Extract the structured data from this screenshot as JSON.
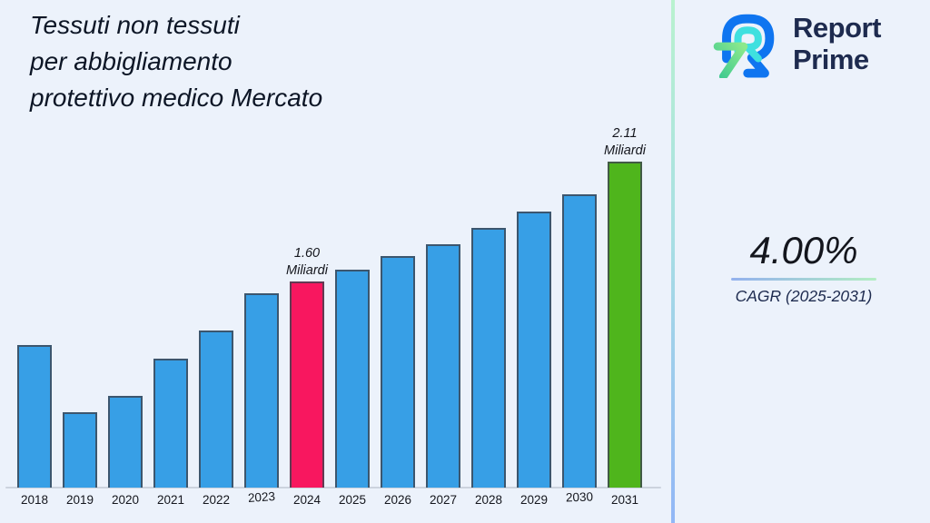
{
  "title": "Tessuti non tessuti\nper abbigliamento\nprotettivo medico Mercato",
  "logo": {
    "line1": "Report",
    "line2": "Prime"
  },
  "cagr": {
    "value": "4.00%",
    "label": "CAGR (2025-2031)"
  },
  "chart_data": {
    "type": "bar",
    "title": "Tessuti non tessuti per abbigliamento protettivo medico Mercato",
    "unit": "Miliardi",
    "categories": [
      "2018",
      "2019",
      "2020",
      "2021",
      "2022",
      "2023",
      "2024",
      "2025",
      "2026",
      "2027",
      "2028",
      "2029",
      "2030",
      "2031"
    ],
    "values": [
      1.33,
      1.04,
      1.11,
      1.27,
      1.39,
      1.55,
      1.6,
      1.65,
      1.71,
      1.76,
      1.83,
      1.9,
      1.97,
      2.11
    ],
    "annotations": [
      {
        "category": "2024",
        "lines": [
          "1.60",
          "Miliardi"
        ]
      },
      {
        "category": "2031",
        "lines": [
          "2.11",
          "Miliardi"
        ]
      }
    ],
    "ylim": [
      0.72,
      2.2
    ],
    "gridlines": false,
    "legend": false,
    "xlabel": "",
    "ylabel": ""
  },
  "colors": {
    "background": "#ECF2FB",
    "title_color": "#0d1626",
    "chart_text": "#14161d",
    "bar_default": "#379FE6",
    "bar_2024": "#F8175F",
    "bar_2031": "#4FB51C",
    "bar_border": "#3d4450cc",
    "axis_line": "#ccd3de",
    "divider_top": "#b9f2cf",
    "divider_mid": "#a8dfe3",
    "divider_bottom": "#92b7f6",
    "underline_left": "#93b1ee",
    "underline_right": "#b3eec3",
    "logo_navy": "#1e2b4f",
    "logo_blue": "#0f75f0",
    "logo_cyan": "#3fe0df",
    "logo_green_1": "#8ce98c",
    "logo_green_2": "#3dc990"
  }
}
